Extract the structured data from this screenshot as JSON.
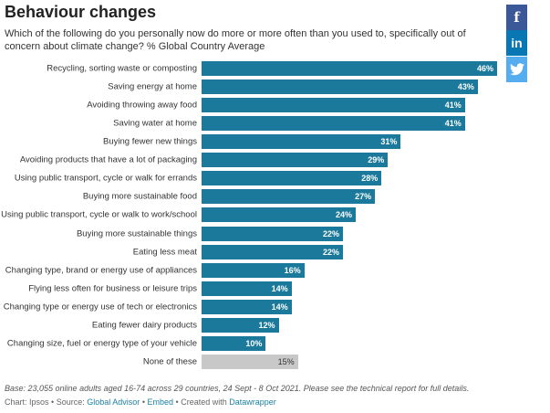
{
  "chart_data": {
    "type": "bar",
    "orientation": "horizontal",
    "title": "Behaviour changes",
    "subtitle": "Which of the following do you personally now do more or more often than you used to, specifically out of concern about climate change? % Global Country Average",
    "categories": [
      "Recycling, sorting waste or composting",
      "Saving energy at home",
      "Avoiding throwing away food",
      "Saving water at home",
      "Buying fewer new things",
      "Avoiding products that have a lot of packaging",
      "Using public transport, cycle or walk for errands",
      "Buying more sustainable food",
      "Using public transport, cycle or walk to work/school",
      "Buying more sustainable things",
      "Eating less meat",
      "Changing type, brand or energy use of appliances",
      "Flying less often for business or leisure trips",
      "Changing type or energy use of tech or electronics",
      "Eating fewer dairy products",
      "Changing size, fuel or energy type of your vehicle",
      "None of these"
    ],
    "values": [
      46,
      43,
      41,
      41,
      31,
      29,
      28,
      27,
      24,
      22,
      22,
      16,
      14,
      14,
      12,
      10,
      15
    ],
    "value_labels": [
      "46%",
      "43%",
      "41%",
      "41%",
      "31%",
      "29%",
      "28%",
      "27%",
      "24%",
      "22%",
      "22%",
      "16%",
      "14%",
      "14%",
      "12%",
      "10%",
      "15%"
    ],
    "colors": [
      "#1b7a9b",
      "#1b7a9b",
      "#1b7a9b",
      "#1b7a9b",
      "#1b7a9b",
      "#1b7a9b",
      "#1b7a9b",
      "#1b7a9b",
      "#1b7a9b",
      "#1b7a9b",
      "#1b7a9b",
      "#1b7a9b",
      "#1b7a9b",
      "#1b7a9b",
      "#1b7a9b",
      "#1b7a9b",
      "#c8c8c8"
    ],
    "notes": "Base: 23,055 online adults aged 16-74 across 29 countries,  24 Sept - 8 Oct 2021. Please see the technical report for full details.",
    "credits": {
      "chart": "Chart: Ipsos",
      "separator": "•",
      "source_label": "Source:",
      "source": "Global Advisor",
      "embed": "Embed",
      "created": "Created with",
      "tool": "Datawrapper"
    }
  },
  "social": [
    "f",
    "in"
  ]
}
